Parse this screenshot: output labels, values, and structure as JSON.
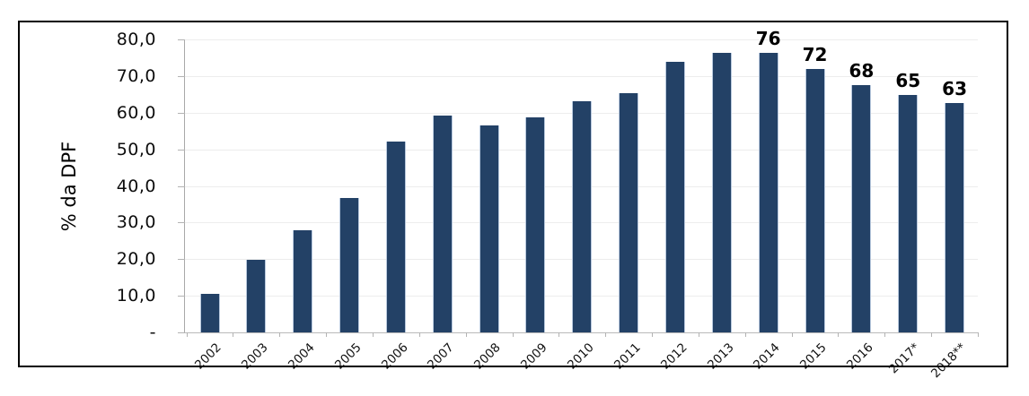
{
  "chart_data": {
    "type": "bar",
    "title": "",
    "xlabel": "",
    "ylabel": "% da DPF",
    "ylim": [
      0,
      80
    ],
    "y_tick_step": 10,
    "grid": true,
    "legend": false,
    "categories": [
      "2002",
      "2003",
      "2004",
      "2005",
      "2006",
      "2007",
      "2008",
      "2009",
      "2010",
      "2011",
      "2012",
      "2013",
      "2014",
      "2015",
      "2016",
      "2017*",
      "2018**"
    ],
    "values": [
      10.5,
      19.7,
      27.8,
      36.7,
      52.2,
      59.1,
      56.4,
      58.8,
      63.2,
      65.3,
      73.9,
      76.4,
      76.4,
      71.9,
      67.5,
      64.9,
      62.6
    ],
    "bar_labels": [
      "",
      "",
      "",
      "",
      "",
      "",
      "",
      "",
      "",
      "",
      "",
      "",
      "76",
      "72",
      "68",
      "65",
      "63"
    ],
    "y_tick_labels": [
      "-",
      "10,0",
      "20,0",
      "30,0",
      "40,0",
      "50,0",
      "60,0",
      "70,0",
      "80,0"
    ],
    "colors": {
      "bar_fill": "#234166",
      "bar_edge": "#b9c9de",
      "gridline": "#ededed",
      "axis_line": "#a9a9a9",
      "tick": "#b3b3b3",
      "label_text": "#000000",
      "frame_border": "#000000",
      "background": "#ffffff"
    }
  }
}
